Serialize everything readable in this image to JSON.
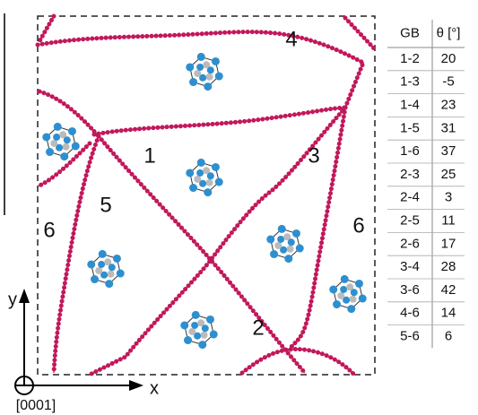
{
  "grain_labels": [
    "4",
    "1",
    "3",
    "5",
    "6",
    "6",
    "2"
  ],
  "axes": {
    "y": "y",
    "x": "x",
    "zone": "[0001]"
  },
  "table": {
    "header": [
      "GB",
      "θ [°]"
    ],
    "rows": [
      [
        "1-2",
        20
      ],
      [
        "1-3",
        -5
      ],
      [
        "1-4",
        23
      ],
      [
        "1-5",
        31
      ],
      [
        "1-6",
        37
      ],
      [
        "2-3",
        25
      ],
      [
        "2-4",
        3
      ],
      [
        "2-5",
        11
      ],
      [
        "2-6",
        17
      ],
      [
        "3-4",
        28
      ],
      [
        "3-6",
        42
      ],
      [
        "4-6",
        14
      ],
      [
        "5-6",
        6
      ]
    ]
  }
}
